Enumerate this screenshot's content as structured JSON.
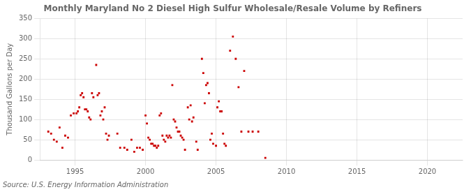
{
  "chart_data": {
    "type": "scatter",
    "title": "Monthly Maryland No 2 Diesel High Sulfur Wholesale/Resale Volume by Refiners",
    "ylabel": "Thousand Gallons per Day",
    "source": "Source: U.S. Energy Information Administration",
    "color": "#cc0000",
    "marker": "square",
    "grid": true,
    "xlim": [
      1992.5,
      2022.5
    ],
    "ylim": [
      0,
      350
    ],
    "xticks": [
      1995,
      2000,
      2005,
      2010,
      2015,
      2020
    ],
    "yticks": [
      0,
      50,
      100,
      150,
      200,
      250,
      300,
      350
    ],
    "x": [
      1993.1,
      1993.3,
      1993.5,
      1993.7,
      1993.9,
      1994.1,
      1994.3,
      1994.5,
      1994.7,
      1994.9,
      1995.1,
      1995.2,
      1995.3,
      1995.4,
      1995.5,
      1995.6,
      1995.7,
      1995.8,
      1995.9,
      1996.0,
      1996.1,
      1996.2,
      1996.3,
      1996.5,
      1996.6,
      1996.7,
      1996.8,
      1996.9,
      1997.0,
      1997.1,
      1997.2,
      1997.3,
      1997.4,
      1998.0,
      1998.2,
      1998.5,
      1998.7,
      1999.0,
      1999.2,
      1999.4,
      1999.6,
      1999.8,
      2000.0,
      2000.1,
      2000.2,
      2000.3,
      2000.4,
      2000.5,
      2000.6,
      2000.7,
      2000.8,
      2000.9,
      2001.0,
      2001.1,
      2001.2,
      2001.3,
      2001.4,
      2001.5,
      2001.6,
      2001.7,
      2001.8,
      2001.9,
      2002.0,
      2002.1,
      2002.2,
      2002.3,
      2002.4,
      2002.5,
      2002.6,
      2002.7,
      2002.8,
      2003.0,
      2003.1,
      2003.2,
      2003.3,
      2003.4,
      2003.6,
      2003.7,
      2004.0,
      2004.1,
      2004.2,
      2004.3,
      2004.4,
      2004.5,
      2004.6,
      2004.7,
      2004.8,
      2005.0,
      2005.1,
      2005.2,
      2005.3,
      2005.4,
      2005.5,
      2005.6,
      2005.7,
      2006.0,
      2006.2,
      2006.4,
      2006.6,
      2006.8,
      2007.0,
      2007.3,
      2007.6,
      2008.0,
      2008.5
    ],
    "values": [
      70,
      65,
      50,
      45,
      80,
      30,
      60,
      55,
      110,
      115,
      115,
      120,
      130,
      160,
      165,
      155,
      125,
      125,
      120,
      105,
      100,
      165,
      155,
      235,
      160,
      165,
      110,
      120,
      100,
      130,
      65,
      50,
      60,
      65,
      30,
      30,
      25,
      50,
      20,
      30,
      30,
      25,
      110,
      90,
      55,
      50,
      40,
      40,
      35,
      35,
      30,
      35,
      110,
      115,
      60,
      50,
      45,
      60,
      55,
      60,
      55,
      185,
      100,
      95,
      80,
      70,
      70,
      60,
      55,
      50,
      25,
      130,
      100,
      135,
      95,
      105,
      45,
      25,
      250,
      215,
      140,
      185,
      190,
      165,
      50,
      65,
      40,
      35,
      130,
      145,
      120,
      120,
      65,
      40,
      35,
      270,
      305,
      250,
      180,
      70,
      220,
      70,
      70,
      70,
      5
    ]
  }
}
